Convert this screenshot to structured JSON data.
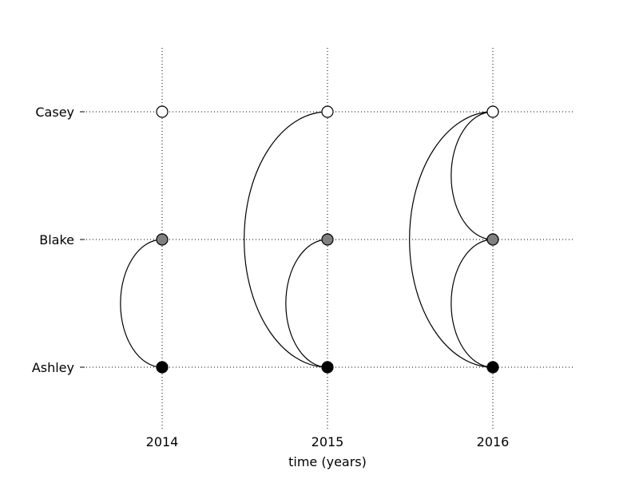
{
  "chart_data": {
    "type": "scatter",
    "title": "",
    "xlabel": "time (years)",
    "ylabel": "",
    "x_categories": [
      "2014",
      "2015",
      "2016"
    ],
    "y_categories": [
      "Ashley",
      "Blake",
      "Casey"
    ],
    "grid": true,
    "colors": {
      "Ashley": "#000000",
      "Blake": "#808080",
      "Casey": "#ffffff"
    },
    "nodes": [
      {
        "x": "2014",
        "y": "Ashley"
      },
      {
        "x": "2014",
        "y": "Blake"
      },
      {
        "x": "2014",
        "y": "Casey"
      },
      {
        "x": "2015",
        "y": "Ashley"
      },
      {
        "x": "2015",
        "y": "Blake"
      },
      {
        "x": "2015",
        "y": "Casey"
      },
      {
        "x": "2016",
        "y": "Ashley"
      },
      {
        "x": "2016",
        "y": "Blake"
      },
      {
        "x": "2016",
        "y": "Casey"
      }
    ],
    "links": [
      {
        "x": "2014",
        "from": "Ashley",
        "to": "Blake"
      },
      {
        "x": "2015",
        "from": "Ashley",
        "to": "Blake"
      },
      {
        "x": "2015",
        "from": "Ashley",
        "to": "Casey"
      },
      {
        "x": "2016",
        "from": "Ashley",
        "to": "Blake"
      },
      {
        "x": "2016",
        "from": "Blake",
        "to": "Casey"
      },
      {
        "x": "2016",
        "from": "Ashley",
        "to": "Casey"
      }
    ]
  }
}
